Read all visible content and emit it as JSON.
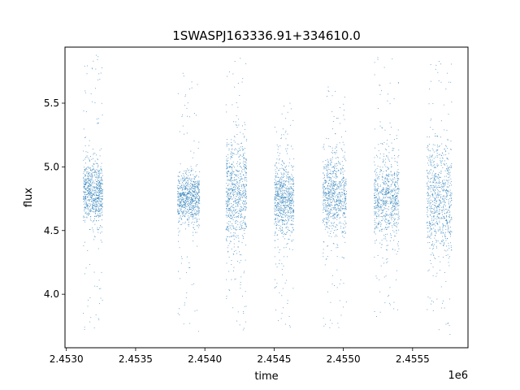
{
  "chart_data": {
    "type": "scatter",
    "title": "1SWASPJ163336.91+334610.0",
    "xlabel": "time",
    "ylabel": "flux",
    "x_offset_label": "1e6",
    "xlim": [
      2452990,
      2455900
    ],
    "ylim": [
      3.58,
      5.94
    ],
    "x_ticks": [
      2453000,
      2453500,
      2454000,
      2454500,
      2455000,
      2455500
    ],
    "x_tick_labels": [
      "2.4530",
      "2.4535",
      "2.4540",
      "2.4545",
      "2.4550",
      "2.4555"
    ],
    "y_ticks": [
      4.0,
      4.5,
      5.0,
      5.5
    ],
    "y_tick_labels": [
      "4.0",
      "4.5",
      "5.0",
      "5.5"
    ],
    "grid": false,
    "point_color": "#1f77b4",
    "observing_seasons": [
      {
        "x_range": [
          2453120,
          2453260
        ],
        "center": 4.8,
        "spread": 0.12,
        "min": 3.72,
        "max": 5.88
      },
      {
        "x_range": [
          2453800,
          2453960
        ],
        "center": 4.75,
        "spread": 0.1,
        "min": 3.7,
        "max": 5.77
      },
      {
        "x_range": [
          2454150,
          2454300
        ],
        "center": 4.78,
        "spread": 0.22,
        "min": 3.7,
        "max": 5.88
      },
      {
        "x_range": [
          2454500,
          2454640
        ],
        "center": 4.75,
        "spread": 0.15,
        "min": 3.72,
        "max": 5.52
      },
      {
        "x_range": [
          2454850,
          2455020
        ],
        "center": 4.78,
        "spread": 0.16,
        "min": 3.72,
        "max": 5.68
      },
      {
        "x_range": [
          2455220,
          2455400
        ],
        "center": 4.75,
        "spread": 0.17,
        "min": 3.7,
        "max": 5.88
      },
      {
        "x_range": [
          2455600,
          2455780
        ],
        "center": 4.75,
        "spread": 0.22,
        "min": 3.68,
        "max": 5.88
      }
    ]
  }
}
